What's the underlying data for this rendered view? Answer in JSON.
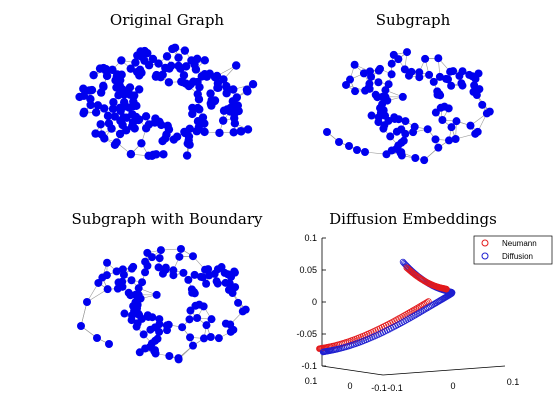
{
  "panels": [
    {
      "id": "p1",
      "title": "Original Graph"
    },
    {
      "id": "p2",
      "title": "Subgraph"
    },
    {
      "id": "p3",
      "title": "Subgraph with Boundary"
    },
    {
      "id": "p4",
      "title": "Diffusion Embeddings"
    }
  ],
  "colors": {
    "node": "#0000ee",
    "edge": "#9a9a9a",
    "neumann": "#e31a1c",
    "diffusion": "#1f1fd0"
  },
  "axis_labels": {
    "z": [
      "0.1",
      "0.05",
      "0",
      "-0.05",
      "-0.1"
    ],
    "x": [
      "0.1",
      "0",
      "-0.1"
    ],
    "y": [
      "-0.1",
      "0",
      "0.1"
    ]
  },
  "chart_data": [
    {
      "type": "network",
      "title": "Original Graph",
      "node_color": "#0000ee",
      "edge_color": "#9a9a9a",
      "layout_shape": "ring"
    },
    {
      "type": "network",
      "title": "Subgraph",
      "node_color": "#0000ee",
      "edge_color": "#9a9a9a",
      "layout_shape": "ring"
    },
    {
      "type": "network",
      "title": "Subgraph with Boundary",
      "node_color": "#0000ee",
      "edge_color": "#9a9a9a",
      "layout_shape": "ring"
    },
    {
      "type": "scatter",
      "title": "Diffusion Embeddings",
      "projection": "3d",
      "zlim": [
        -0.1,
        0.1
      ],
      "xlim": [
        -0.1,
        0.1
      ],
      "ylim": [
        -0.1,
        0.1
      ],
      "z_ticks": [
        0.1,
        0.05,
        0,
        -0.05,
        -0.1
      ],
      "legend": {
        "position": "top-right",
        "entries": [
          "Neumann",
          "Diffusion"
        ]
      },
      "series": [
        {
          "name": "Neumann",
          "color": "#e31a1c",
          "marker": "open-circle"
        },
        {
          "name": "Diffusion",
          "color": "#1f1fd0",
          "marker": "open-circle"
        }
      ]
    }
  ]
}
